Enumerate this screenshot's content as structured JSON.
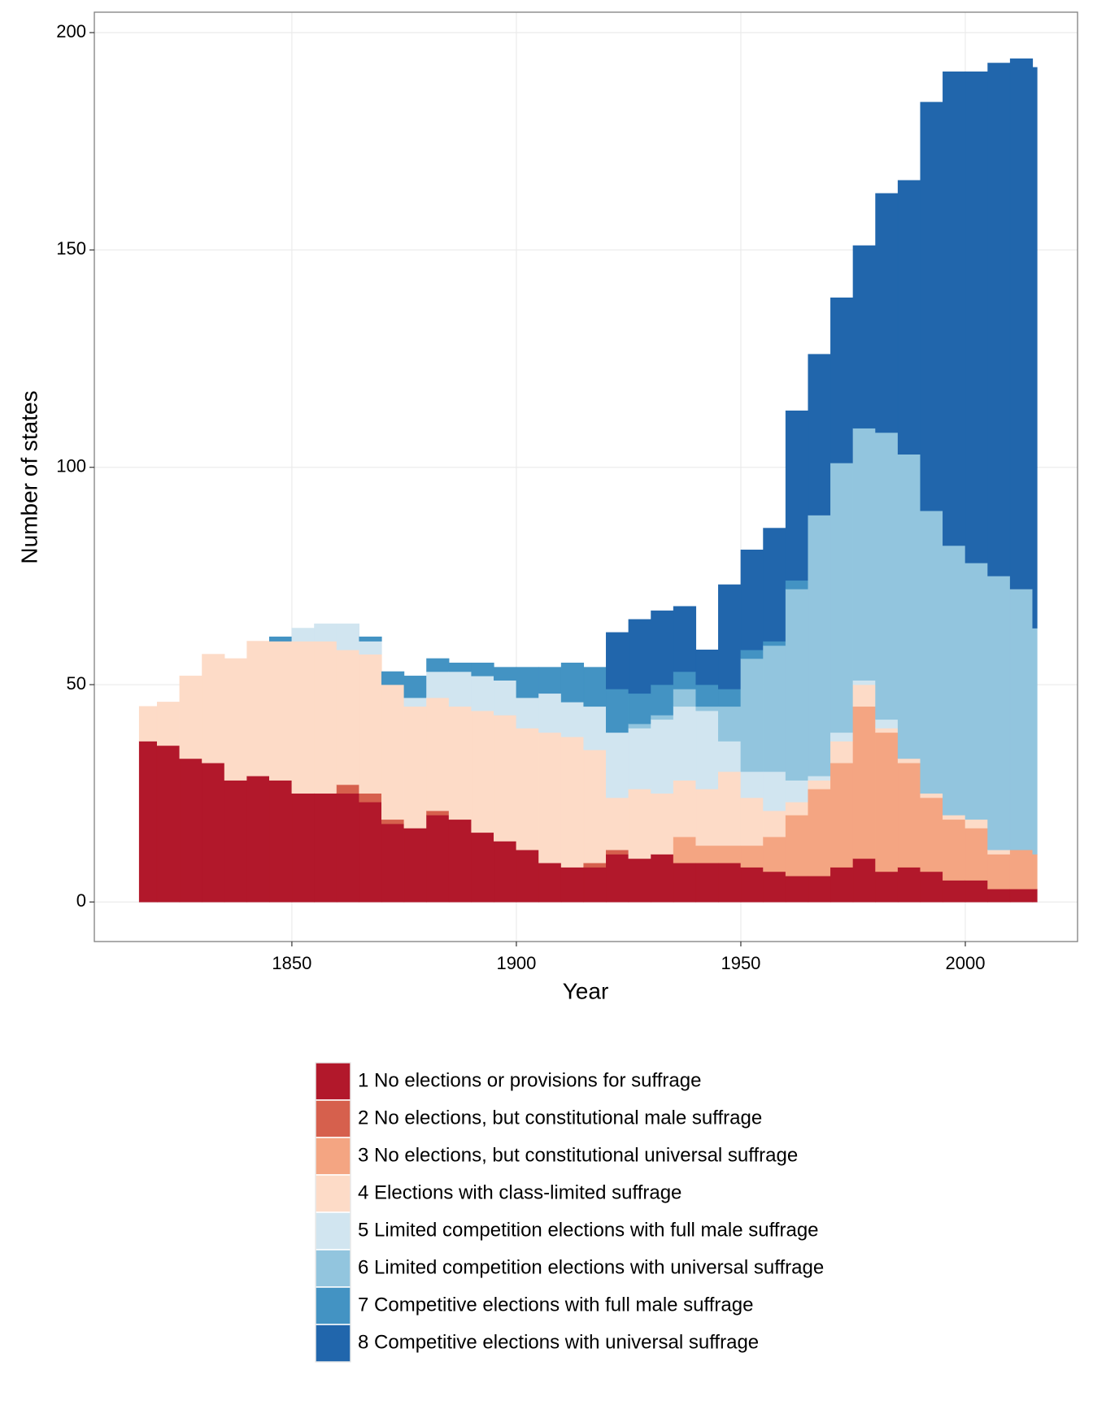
{
  "chart_data": {
    "type": "stacked-step-area",
    "x_label": "Year",
    "y_label": "Number of states",
    "x": [
      1816,
      1820,
      1825,
      1830,
      1835,
      1840,
      1845,
      1850,
      1855,
      1860,
      1865,
      1870,
      1875,
      1880,
      1885,
      1890,
      1895,
      1900,
      1905,
      1910,
      1915,
      1920,
      1925,
      1930,
      1935,
      1940,
      1945,
      1950,
      1955,
      1960,
      1965,
      1970,
      1975,
      1980,
      1985,
      1990,
      1995,
      2000,
      2005,
      2010,
      2015
    ],
    "series": [
      {
        "name": "1 No elections or provisions for suffrage",
        "color": "#b2182b",
        "values": [
          37,
          36,
          33,
          32,
          28,
          29,
          28,
          25,
          25,
          25,
          23,
          18,
          17,
          20,
          19,
          16,
          14,
          12,
          9,
          8,
          8,
          11,
          10,
          11,
          9,
          9,
          9,
          8,
          7,
          6,
          6,
          8,
          10,
          7,
          8,
          7,
          5,
          5,
          3,
          3,
          3
        ]
      },
      {
        "name": "2 No elections, but constitutional male suffrage",
        "color": "#d6604d",
        "values": [
          0,
          0,
          0,
          0,
          0,
          0,
          0,
          0,
          0,
          2,
          2,
          1,
          0,
          1,
          0,
          0,
          0,
          0,
          0,
          0,
          1,
          1,
          0,
          0,
          0,
          0,
          0,
          0,
          0,
          0,
          0,
          0,
          0,
          0,
          0,
          0,
          0,
          0,
          0,
          0,
          0
        ]
      },
      {
        "name": "3 No elections, but constitutional universal suffrage",
        "color": "#f4a582",
        "values": [
          0,
          0,
          0,
          0,
          0,
          0,
          0,
          0,
          0,
          0,
          0,
          0,
          0,
          0,
          0,
          0,
          0,
          0,
          0,
          0,
          0,
          0,
          0,
          0,
          6,
          4,
          4,
          5,
          8,
          14,
          20,
          24,
          35,
          32,
          24,
          17,
          14,
          12,
          8,
          9,
          8
        ]
      },
      {
        "name": "4 Elections with class-limited suffrage",
        "color": "#fddbc7",
        "values": [
          8,
          10,
          19,
          25,
          28,
          31,
          32,
          35,
          35,
          31,
          32,
          31,
          28,
          26,
          26,
          28,
          29,
          28,
          30,
          30,
          26,
          12,
          16,
          14,
          13,
          13,
          17,
          11,
          6,
          3,
          2,
          5,
          5,
          1,
          1,
          1,
          1,
          2,
          1,
          0,
          0
        ]
      },
      {
        "name": "5 Limited competition elections with full male suffrage",
        "color": "#d1e5f0",
        "values": [
          0,
          0,
          0,
          0,
          0,
          0,
          0,
          3,
          4,
          6,
          3,
          0,
          2,
          6,
          8,
          8,
          8,
          7,
          9,
          8,
          10,
          15,
          14,
          17,
          17,
          18,
          7,
          6,
          9,
          5,
          1,
          2,
          1,
          2,
          0,
          0,
          0,
          0,
          0,
          0,
          0
        ]
      },
      {
        "name": "6 Limited competition elections with universal suffrage",
        "color": "#92c5de",
        "values": [
          0,
          0,
          0,
          0,
          0,
          0,
          0,
          0,
          0,
          0,
          0,
          0,
          0,
          0,
          0,
          0,
          0,
          0,
          0,
          0,
          0,
          0,
          1,
          1,
          4,
          1,
          8,
          26,
          29,
          44,
          60,
          62,
          58,
          66,
          70,
          65,
          62,
          59,
          63,
          60,
          52
        ]
      },
      {
        "name": "7 Competitive elections with full male suffrage",
        "color": "#4393c3",
        "values": [
          0,
          0,
          0,
          0,
          0,
          0,
          1,
          0,
          0,
          0,
          1,
          3,
          5,
          3,
          2,
          3,
          3,
          7,
          6,
          9,
          9,
          10,
          7,
          7,
          4,
          5,
          4,
          2,
          1,
          2,
          0,
          0,
          0,
          0,
          0,
          0,
          0,
          0,
          0,
          0,
          0
        ]
      },
      {
        "name": "8 Competitive elections with universal suffrage",
        "color": "#2166ac",
        "values": [
          0,
          0,
          0,
          0,
          0,
          0,
          0,
          0,
          0,
          0,
          0,
          0,
          0,
          0,
          0,
          0,
          0,
          0,
          0,
          0,
          0,
          13,
          17,
          17,
          15,
          8,
          24,
          23,
          26,
          39,
          37,
          38,
          42,
          55,
          63,
          94,
          109,
          113,
          118,
          122,
          129
        ]
      }
    ],
    "xlim": [
      1806,
      2025
    ],
    "ylim": [
      -9.1,
      204.7
    ],
    "xticks": [
      1850,
      1900,
      1950,
      2000
    ],
    "yticks": [
      0,
      50,
      100,
      150,
      200
    ],
    "grid": true,
    "legend": "bottom"
  }
}
